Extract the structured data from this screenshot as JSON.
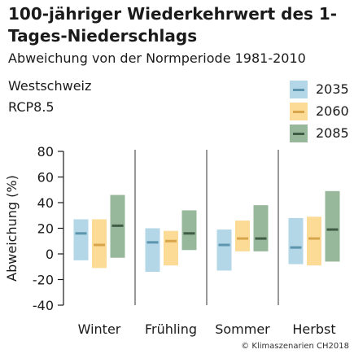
{
  "header": {
    "title": "100-jähriger Wiederkehrwert des 1-Tages-Niederschlags",
    "subtitle": "Abweichung von der Normperiode 1981-2010",
    "region": "Westschweiz",
    "scenario": "RCP8.5"
  },
  "footer": {
    "copyright": "© Klimaszenarien CH2018"
  },
  "legend": [
    {
      "label": "2035",
      "fill": "#b3d7e6",
      "line": "#5c95ad"
    },
    {
      "label": "2060",
      "fill": "#fbdb96",
      "line": "#d9a54a"
    },
    {
      "label": "2085",
      "fill": "#97b89b",
      "line": "#3f5c45"
    }
  ],
  "chart_data": {
    "type": "range-bar",
    "ylabel": "Abweichung (%)",
    "ylim": [
      -40,
      80
    ],
    "yticks": [
      80,
      60,
      40,
      20,
      0,
      -20,
      -40
    ],
    "categories": [
      "Winter",
      "Frühling",
      "Sommer",
      "Herbst"
    ],
    "series": [
      {
        "name": "2035",
        "low": [
          -5,
          -14,
          -13,
          -8
        ],
        "median": [
          16,
          9,
          7,
          5
        ],
        "high": [
          27,
          20,
          19,
          28
        ]
      },
      {
        "name": "2060",
        "low": [
          -11,
          -9,
          2,
          -9
        ],
        "median": [
          7,
          10,
          12,
          12
        ],
        "high": [
          27,
          18,
          26,
          29
        ]
      },
      {
        "name": "2085",
        "low": [
          -3,
          3,
          2,
          -6
        ],
        "median": [
          22,
          16,
          12,
          19
        ],
        "high": [
          46,
          34,
          38,
          49
        ]
      }
    ]
  }
}
